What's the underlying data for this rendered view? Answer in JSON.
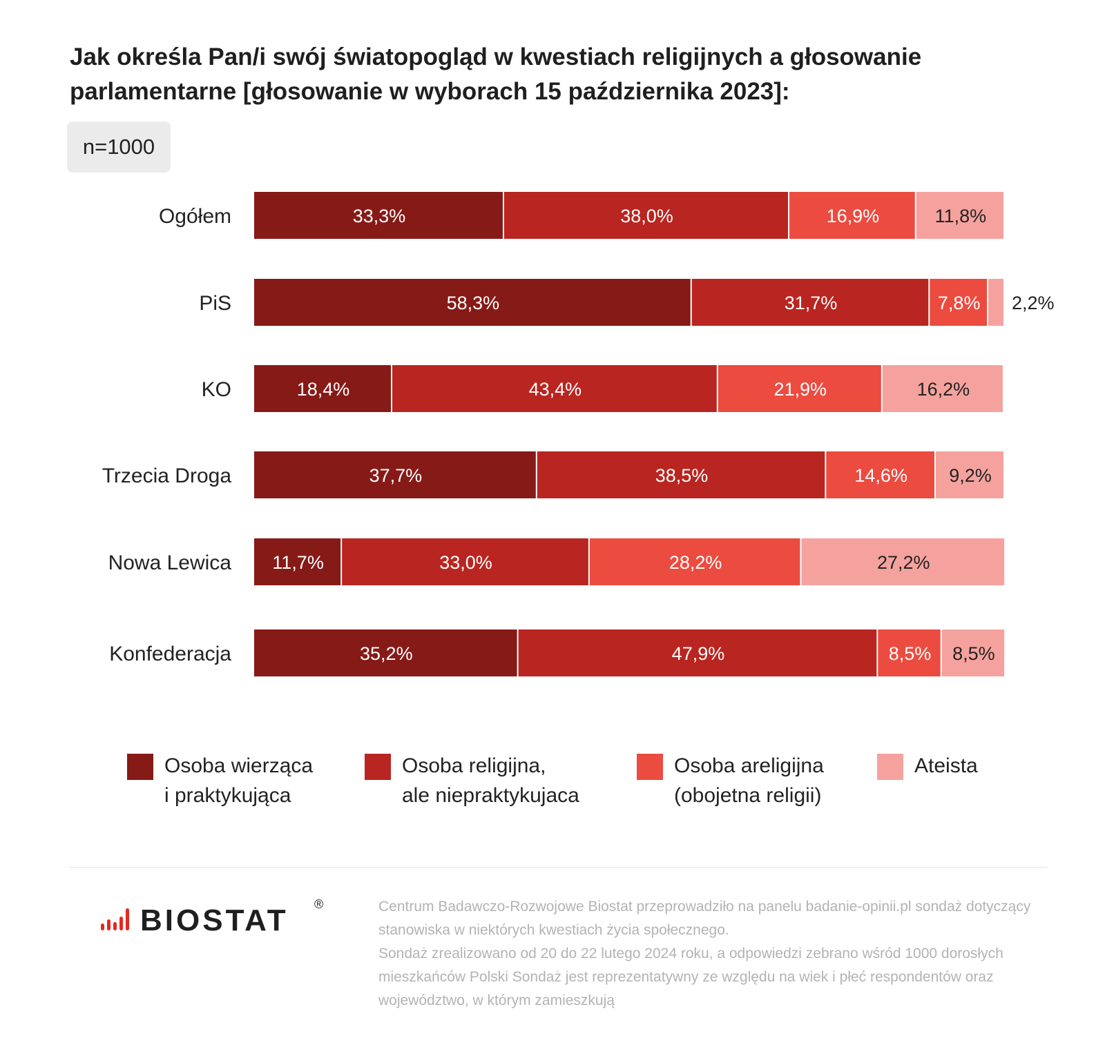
{
  "title": "Jak określa Pan/i swój światopogląd w kwestiach religijnych a głosowanie parlamentarne [głosowanie w wyborach 15 października 2023]:",
  "sample_badge": "n=1000",
  "colors": {
    "series": [
      "#861a17",
      "#b92520",
      "#ec4b40",
      "#f5a29e"
    ],
    "bar_text_dark": "#222222",
    "bar_text_light": "#ffffff"
  },
  "chart_data": {
    "type": "bar",
    "orientation": "horizontal",
    "stacked": true,
    "categories": [
      "Ogółem",
      "PiS",
      "KO",
      "Trzecia Droga",
      "Nowa Lewica",
      "Konfederacja"
    ],
    "series": [
      {
        "name": "Osoba wierząca\ni praktykująca",
        "values": [
          33.3,
          58.3,
          18.4,
          37.7,
          11.7,
          35.2
        ],
        "labels": [
          "33,3%",
          "58,3%",
          "18,4%",
          "37,7%",
          "11,7%",
          "35,2%"
        ]
      },
      {
        "name": "Osoba religijna,\nale niepraktykujaca",
        "values": [
          38.0,
          31.7,
          43.4,
          38.5,
          33.0,
          47.9
        ],
        "labels": [
          "38,0%",
          "31,7%",
          "43,4%",
          "38,5%",
          "33,0%",
          "47,9%"
        ]
      },
      {
        "name": "Osoba areligijna\n(obojetna religii)",
        "values": [
          16.9,
          7.8,
          21.9,
          14.6,
          28.2,
          8.5
        ],
        "labels": [
          "16,9%",
          "7,8%",
          "21,9%",
          "14,6%",
          "28,2%",
          "8,5%"
        ]
      },
      {
        "name": "Ateista",
        "values": [
          11.8,
          2.2,
          16.2,
          9.2,
          27.2,
          8.5
        ],
        "labels": [
          "11,8%",
          "2,2%",
          "16,2%",
          "9,2%",
          "27,2%",
          "8,5%"
        ]
      }
    ],
    "xlim": [
      0,
      100
    ],
    "grid": false,
    "legend_position": "bottom"
  },
  "logo": {
    "text": "BIOSTAT",
    "registered": "®"
  },
  "note": "Centrum Badawczo-Rozwojowe Biostat przeprowadziło na panelu badanie-opinii.pl sondaż dotyczący stanowiska w niektórych kwestiach życia społecznego.\nSondaż zrealizowano od 20 do 22 lutego 2024 roku, a odpowiedzi zebrano wśród 1000 dorosłych mieszkańców Polski Sondaż jest reprezentatywny ze względu na wiek i płeć respondentów oraz województwo, w którym zamieszkują"
}
